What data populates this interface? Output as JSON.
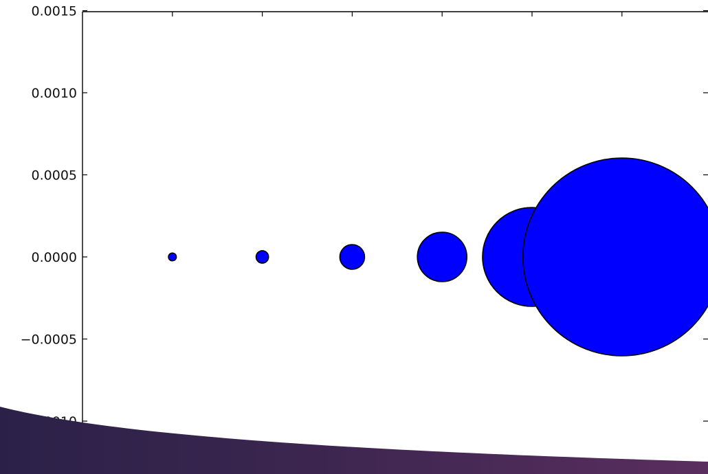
{
  "chart_data": {
    "type": "scatter",
    "x": [
      1,
      2,
      3,
      4,
      5,
      6
    ],
    "y": [
      0.0,
      0.0,
      0.0,
      0.0,
      0.0,
      0.0
    ],
    "relative_marker_radius": [
      0.04,
      0.063,
      0.125,
      0.25,
      0.5,
      1.0
    ],
    "marker_color": "#0000ff",
    "marker_edge_color": "#000000",
    "ylim": [
      -0.001,
      0.0015
    ],
    "yticks": [
      "0.0015",
      "0.0010",
      "0.0005",
      "0.0000",
      "−0.0005",
      "−0.0010"
    ],
    "xticks_count": 7,
    "grid": false,
    "title": "",
    "xlabel": "",
    "ylabel": ""
  },
  "overlay": {
    "colors": [
      "#2b2148",
      "#3c2650",
      "#5a2e5e"
    ]
  }
}
